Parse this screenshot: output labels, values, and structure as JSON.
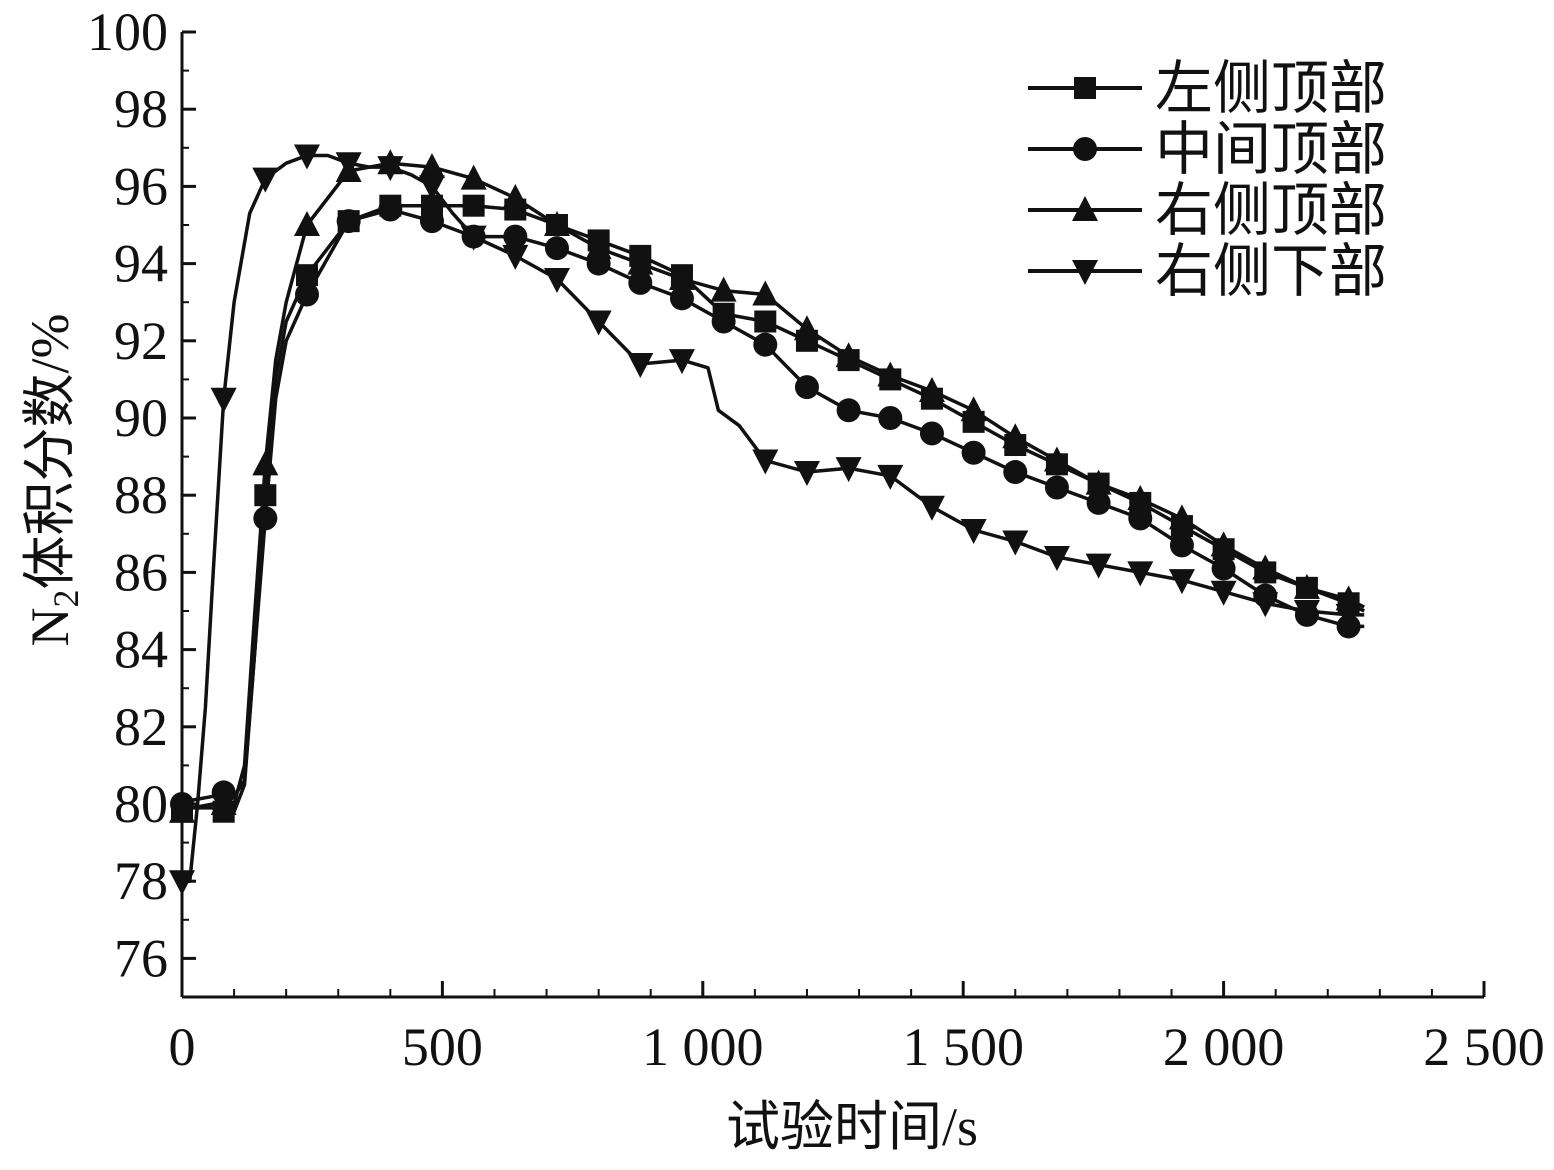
{
  "chart_data": {
    "type": "line",
    "xlabel": "试验时间/s",
    "ylabel": "N2体积分数/%",
    "ylabel_parts": {
      "main": "N",
      "subscript": "2",
      "rest": "体积分数/%"
    },
    "xlim": [
      0,
      2500
    ],
    "ylim": [
      75,
      100
    ],
    "x_ticks": [
      0,
      500,
      1000,
      1500,
      2000,
      2500
    ],
    "x_tick_labels": [
      "0",
      "500",
      "1 000",
      "1 500",
      "2 000",
      "2 500"
    ],
    "y_ticks": [
      76,
      78,
      80,
      82,
      84,
      86,
      88,
      90,
      92,
      94,
      96,
      98,
      100
    ],
    "y_tick_labels": [
      "76",
      "78",
      "80",
      "82",
      "84",
      "86",
      "88",
      "90",
      "92",
      "94",
      "96",
      "98",
      "100"
    ],
    "grid": false,
    "legend_position": "top-right",
    "series": [
      {
        "name": "左侧顶部",
        "marker": "square",
        "color": "#111111",
        "x": [
          0,
          20,
          60,
          80,
          100,
          120,
          140,
          160,
          180,
          200,
          240,
          320,
          400,
          480,
          560,
          640,
          720,
          800,
          880,
          960,
          1040,
          1120,
          1200,
          1280,
          1360,
          1440,
          1520,
          1600,
          1680,
          1760,
          1840,
          1920,
          2000,
          2080,
          2160,
          2240,
          2270
        ],
        "y": [
          79.8,
          79.9,
          79.9,
          79.8,
          79.8,
          80.5,
          84.0,
          88.0,
          91.0,
          92.5,
          93.7,
          95.1,
          95.5,
          95.5,
          95.5,
          95.4,
          95.0,
          94.6,
          94.2,
          93.7,
          92.7,
          92.5,
          92.0,
          91.5,
          91.0,
          90.5,
          89.9,
          89.3,
          88.8,
          88.3,
          87.8,
          87.2,
          86.6,
          86.0,
          85.6,
          85.2,
          85.0
        ]
      },
      {
        "name": "中间顶部",
        "marker": "circle",
        "color": "#111111",
        "x": [
          0,
          20,
          60,
          80,
          100,
          120,
          140,
          160,
          180,
          200,
          240,
          320,
          400,
          480,
          560,
          640,
          720,
          800,
          880,
          960,
          1040,
          1120,
          1200,
          1280,
          1360,
          1440,
          1520,
          1600,
          1680,
          1760,
          1840,
          1920,
          2000,
          2080,
          2160,
          2240,
          2270
        ],
        "y": [
          80.0,
          80.1,
          80.2,
          80.3,
          80.2,
          80.6,
          84.0,
          87.4,
          90.5,
          92.0,
          93.2,
          95.1,
          95.4,
          95.1,
          94.7,
          94.7,
          94.4,
          94.0,
          93.5,
          93.1,
          92.5,
          91.9,
          90.8,
          90.2,
          90.0,
          89.6,
          89.1,
          88.6,
          88.2,
          87.8,
          87.4,
          86.7,
          86.1,
          85.4,
          84.9,
          84.6,
          84.6
        ]
      },
      {
        "name": "右侧顶部",
        "marker": "triangle-up",
        "color": "#111111",
        "x": [
          0,
          20,
          60,
          80,
          100,
          120,
          140,
          160,
          180,
          200,
          240,
          320,
          400,
          480,
          560,
          640,
          720,
          800,
          880,
          960,
          1040,
          1120,
          1200,
          1280,
          1360,
          1440,
          1520,
          1600,
          1680,
          1760,
          1840,
          1920,
          2000,
          2080,
          2160,
          2240,
          2270
        ],
        "y": [
          79.8,
          79.9,
          80.0,
          80.0,
          80.0,
          81.0,
          85.0,
          88.8,
          91.5,
          93.0,
          95.0,
          96.4,
          96.6,
          96.5,
          96.2,
          95.7,
          95.0,
          94.4,
          94.0,
          93.6,
          93.3,
          93.2,
          92.3,
          91.6,
          91.1,
          90.7,
          90.2,
          89.5,
          88.9,
          88.3,
          87.9,
          87.4,
          86.7,
          86.1,
          85.6,
          85.3,
          85.1
        ]
      },
      {
        "name": "右侧下部",
        "marker": "triangle-down",
        "color": "#111111",
        "x": [
          0,
          15,
          30,
          45,
          60,
          80,
          100,
          130,
          160,
          200,
          240,
          280,
          320,
          360,
          400,
          440,
          480,
          520,
          560,
          640,
          720,
          800,
          880,
          960,
          1010,
          1030,
          1070,
          1120,
          1200,
          1280,
          1360,
          1440,
          1520,
          1600,
          1680,
          1760,
          1840,
          1920,
          2000,
          2080,
          2160,
          2240,
          2270
        ],
        "y": [
          78.0,
          78.0,
          80.0,
          82.5,
          86.0,
          90.5,
          93.0,
          95.3,
          96.2,
          96.6,
          96.8,
          96.8,
          96.6,
          96.5,
          96.5,
          96.3,
          96.0,
          95.3,
          94.7,
          94.2,
          93.6,
          92.5,
          91.4,
          91.5,
          91.3,
          90.2,
          89.8,
          88.9,
          88.6,
          88.7,
          88.5,
          87.7,
          87.1,
          86.8,
          86.4,
          86.2,
          86.0,
          85.8,
          85.5,
          85.2,
          85.0,
          84.9,
          84.9
        ]
      }
    ]
  }
}
